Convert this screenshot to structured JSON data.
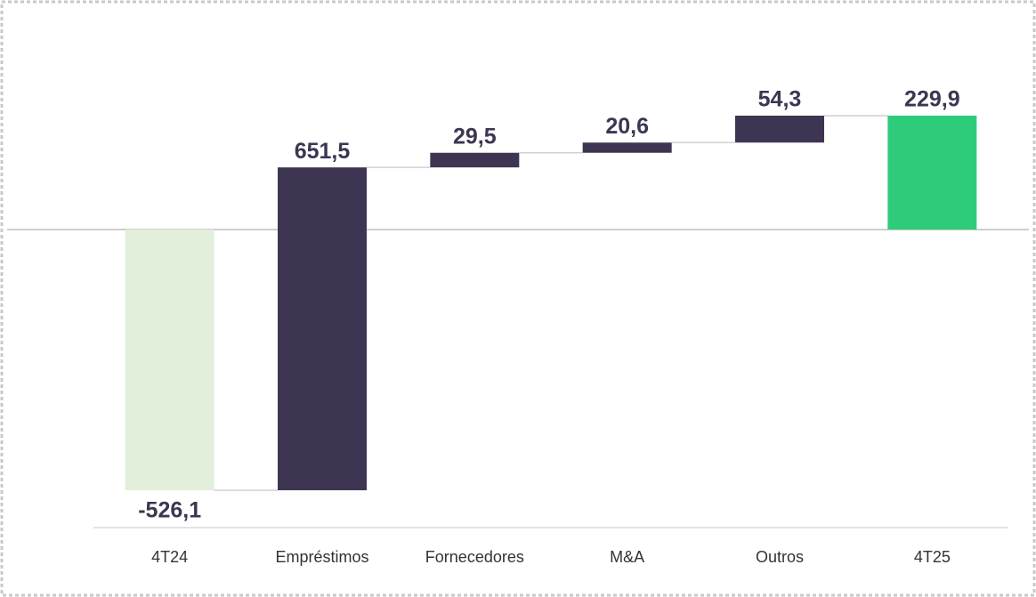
{
  "chart_data": {
    "type": "waterfall",
    "categories": [
      "4T24",
      "Empréstimos",
      "Fornecedores",
      "M&A",
      "Outros",
      "4T25"
    ],
    "values": [
      -526.1,
      651.5,
      29.5,
      20.6,
      54.3,
      229.9
    ],
    "value_labels": [
      "-526,1",
      "651,5",
      "29,5",
      "20,6",
      "54,3",
      "229,9"
    ],
    "colors": [
      "#e2efda",
      "#3d3552",
      "#3d3552",
      "#3d3552",
      "#3d3552",
      "#2ecc7a"
    ]
  }
}
